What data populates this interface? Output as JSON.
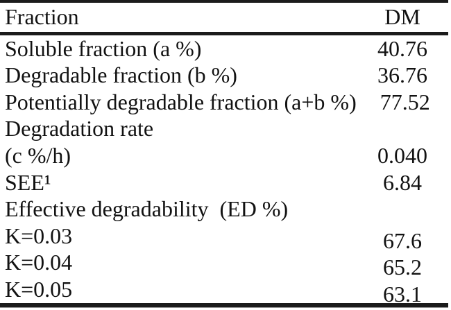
{
  "table": {
    "header": {
      "fraction": "Fraction",
      "dm": "DM"
    },
    "rows": [
      {
        "label": "Soluble fraction (a %)",
        "value": "40.76"
      },
      {
        "label": "Degradable fraction (b %)",
        "value": "36.76"
      },
      {
        "label": "Potentially degradable fraction (a+b %)",
        "value": "77.52"
      },
      {
        "label": "Degradation rate",
        "value": ""
      },
      {
        "label": "(c %/h)",
        "value": "0.040"
      },
      {
        "label": "SEE¹",
        "value": "6.84"
      },
      {
        "label": "Effective degradability  (ED %)",
        "value": ""
      },
      {
        "label": "K=0.03",
        "value": "67.6"
      },
      {
        "label": "K=0.04",
        "value": "65.2"
      },
      {
        "label": "K=0.05",
        "value": "63.1"
      }
    ]
  }
}
